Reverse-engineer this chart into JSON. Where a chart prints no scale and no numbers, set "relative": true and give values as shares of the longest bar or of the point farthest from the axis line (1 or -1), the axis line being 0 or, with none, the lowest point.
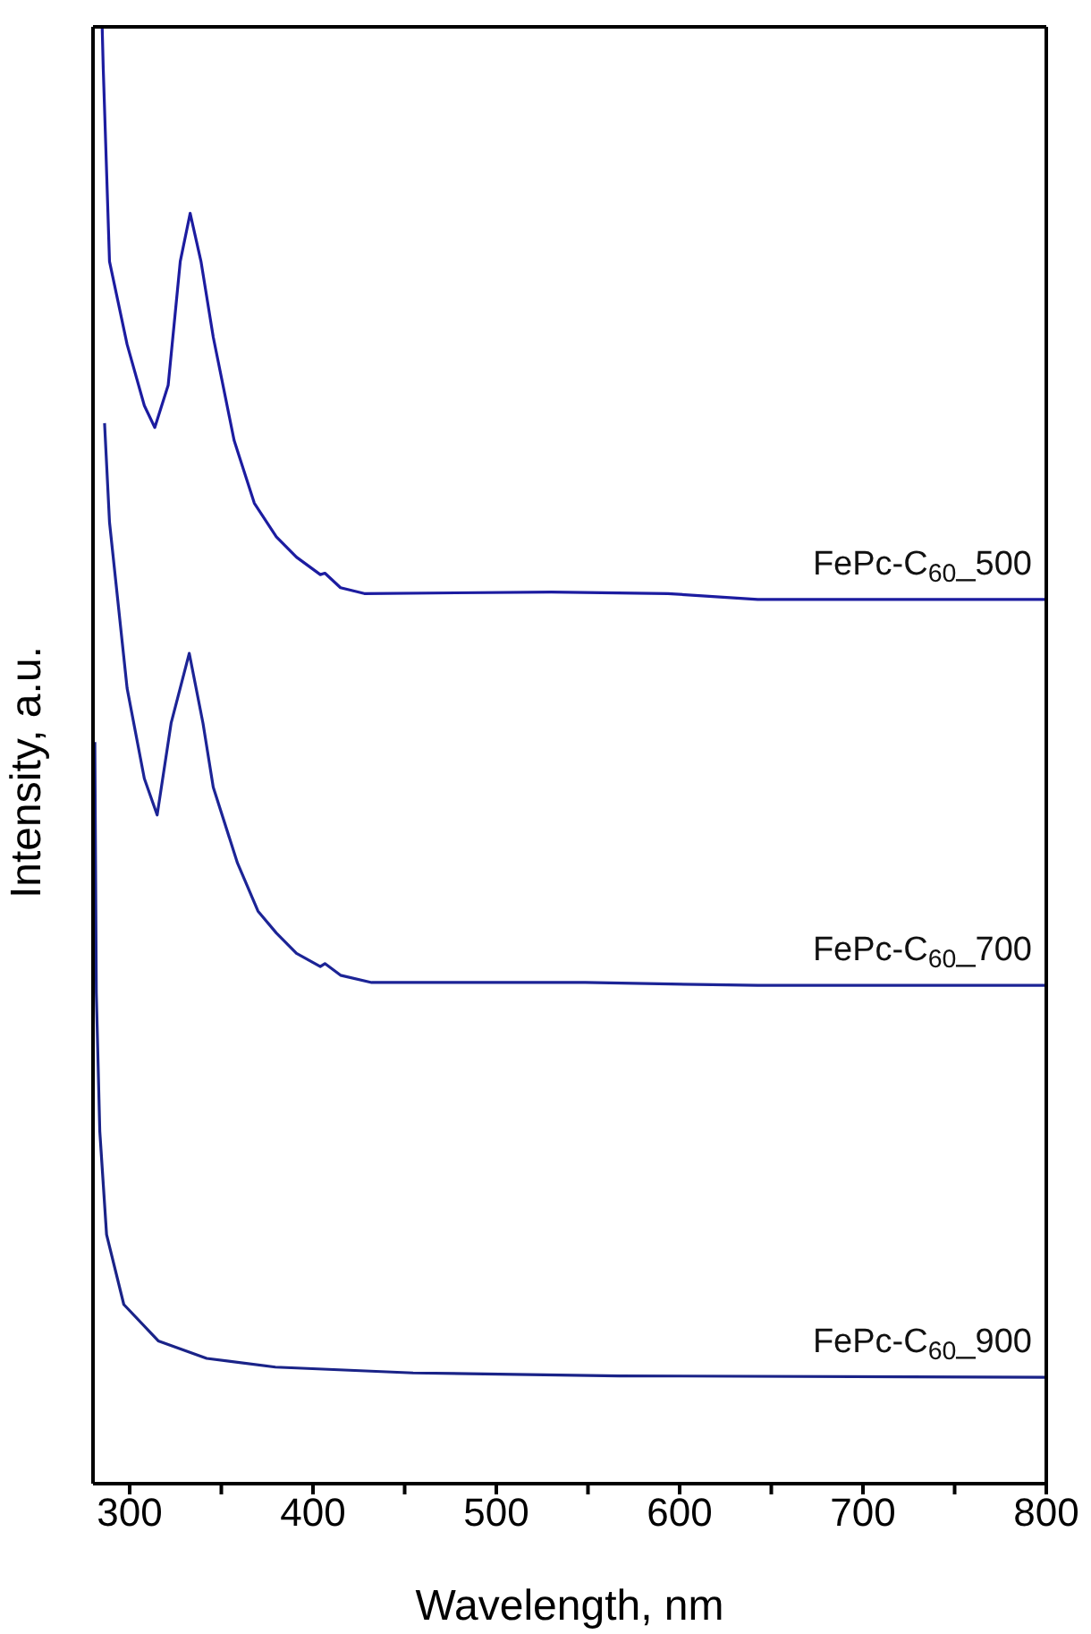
{
  "chart_data": {
    "type": "line",
    "xlabel": "Wavelength, nm",
    "ylabel": "Intensity, a.u.",
    "relative": true,
    "legend": false,
    "grid": false,
    "marker": "none",
    "line_style": "solid",
    "xlim": [
      280,
      800
    ],
    "xticks": [
      300,
      {
        "value": 350,
        "label": null
      },
      400,
      {
        "value": 450,
        "label": null
      },
      500,
      {
        "value": 550,
        "label": null
      },
      600,
      {
        "value": 650,
        "label": null
      },
      700,
      {
        "value": 750,
        "label": null
      },
      800
    ],
    "series": [
      {
        "name": "FePc-C$_{60}$_500",
        "color": "#1c1ca0",
        "x": [
          285,
          285.6,
          289,
          298.6,
          308,
          313.7,
          321,
          327.6,
          333,
          338.9,
          345.6,
          357,
          368,
          380,
          391,
          404,
          406.5,
          415,
          428,
          530,
          593.6,
          642.6,
          800
        ],
        "values": [
          1,
          0.971,
          0.839,
          0.782,
          0.74,
          0.725,
          0.754,
          0.839,
          0.872,
          0.839,
          0.787,
          0.716,
          0.673,
          0.65,
          0.636,
          0.624,
          0.625,
          0.615,
          0.611,
          0.612,
          0.611,
          0.607,
          0.607
        ]
      },
      {
        "name": "FePc-C$_{60}$_700",
        "color": "#1c2496",
        "x": [
          286.3,
          289,
          298.6,
          308,
          315,
          322.6,
          332.5,
          340,
          345.6,
          358.8,
          370,
          380,
          391,
          404,
          406.5,
          415,
          432,
          548.5,
          642.6,
          800
        ],
        "values": [
          0.728,
          0.66,
          0.546,
          0.484,
          0.459,
          0.522,
          0.57,
          0.522,
          0.478,
          0.426,
          0.393,
          0.378,
          0.364,
          0.355,
          0.357,
          0.349,
          0.344,
          0.344,
          0.342,
          0.342
        ]
      },
      {
        "name": "FePc-C$_{60}$_900",
        "color": "#1a2388",
        "x": [
          281,
          281.8,
          283.7,
          287.4,
          296.8,
          315.6,
          342,
          379.5,
          454.6,
          567,
          800
        ],
        "values": [
          0.509,
          0.337,
          0.242,
          0.171,
          0.123,
          0.098,
          0.086,
          0.08,
          0.076,
          0.074,
          0.073
        ]
      }
    ]
  }
}
